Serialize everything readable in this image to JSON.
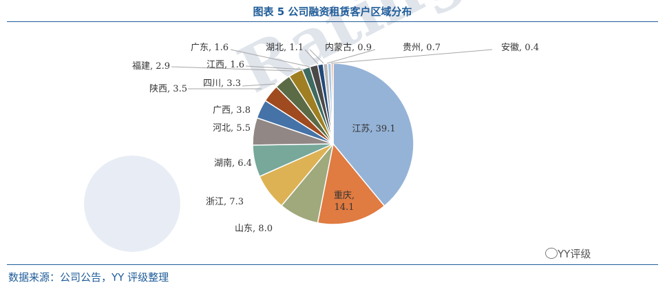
{
  "header": {
    "title": "图表 5 公司融资租赁客户区域分布"
  },
  "footer": {
    "source": "数据来源：公司公告，YY 评级整理",
    "brand": "YY评级"
  },
  "watermark": {
    "text": "Ratingdog"
  },
  "chart_data": {
    "type": "pie",
    "title": "图表 5 公司融资租赁客户区域分布",
    "data_labels": "category, value",
    "start_angle": "12 o'clock, clockwise",
    "slices": [
      {
        "label": "江苏",
        "value": 39.1,
        "color": "#95B3D7"
      },
      {
        "label": "重庆",
        "value": 14.1,
        "color": "#E07B41"
      },
      {
        "label": "山东",
        "value": 8.0,
        "color": "#9FA97C"
      },
      {
        "label": "浙江",
        "value": 7.3,
        "color": "#DDB255"
      },
      {
        "label": "湖南",
        "value": 6.4,
        "color": "#77A89A"
      },
      {
        "label": "河北",
        "value": 5.5,
        "color": "#918885"
      },
      {
        "label": "广西",
        "value": 3.8,
        "color": "#4572A7"
      },
      {
        "label": "陕西",
        "value": 3.5,
        "color": "#9F4A1F"
      },
      {
        "label": "四川",
        "value": 3.3,
        "color": "#5B6B45"
      },
      {
        "label": "福建",
        "value": 2.9,
        "color": "#9F7F21"
      },
      {
        "label": "江西",
        "value": 1.6,
        "color": "#3E6A60"
      },
      {
        "label": "广东",
        "value": 1.6,
        "color": "#4C4847"
      },
      {
        "label": "湖北",
        "value": 1.1,
        "color": "#23497A"
      },
      {
        "label": "内蒙古",
        "value": 0.9,
        "color": "#B8B8B8"
      },
      {
        "label": "贵州",
        "value": 0.7,
        "color": "#A5C5E8"
      },
      {
        "label": "安徽",
        "value": 0.4,
        "color": "#F2A77F"
      }
    ]
  }
}
